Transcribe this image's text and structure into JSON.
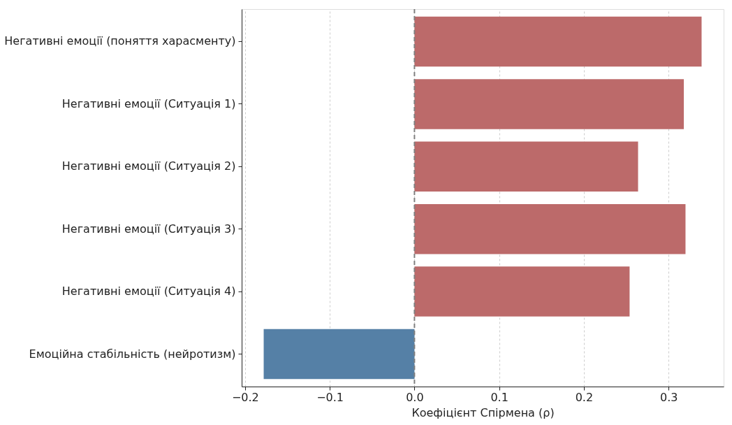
{
  "chart_data": {
    "type": "bar",
    "orientation": "horizontal",
    "xlabel": "Коефіцієнт Спірмена (ρ)",
    "categories": [
      "Негативні емоції (поняття харасменту)",
      "Негативні емоції (Ситуація 1)",
      "Негативні емоції (Ситуація 2)",
      "Негативні емоції (Ситуація 3)",
      "Негативні емоції (Ситуація 4)",
      "Емоційна стабільність (нейротизм)"
    ],
    "values": [
      0.339,
      0.318,
      0.264,
      0.32,
      0.254,
      -0.178
    ],
    "colors": [
      "#bc6a6a",
      "#bc6a6a",
      "#bc6a6a",
      "#bc6a6a",
      "#bc6a6a",
      "#5580a6"
    ],
    "xlim": [
      -0.204,
      0.365
    ],
    "xticks": [
      {
        "value": -0.2,
        "label": "−0.2"
      },
      {
        "value": -0.1,
        "label": "−0.1"
      },
      {
        "value": 0,
        "label": "0.0"
      },
      0.1,
      0.2,
      0.3
    ],
    "ref_lines": [
      {
        "axis": "x",
        "value": 0,
        "color": "#808080",
        "line_style": "dashed"
      }
    ],
    "grid": "x"
  }
}
